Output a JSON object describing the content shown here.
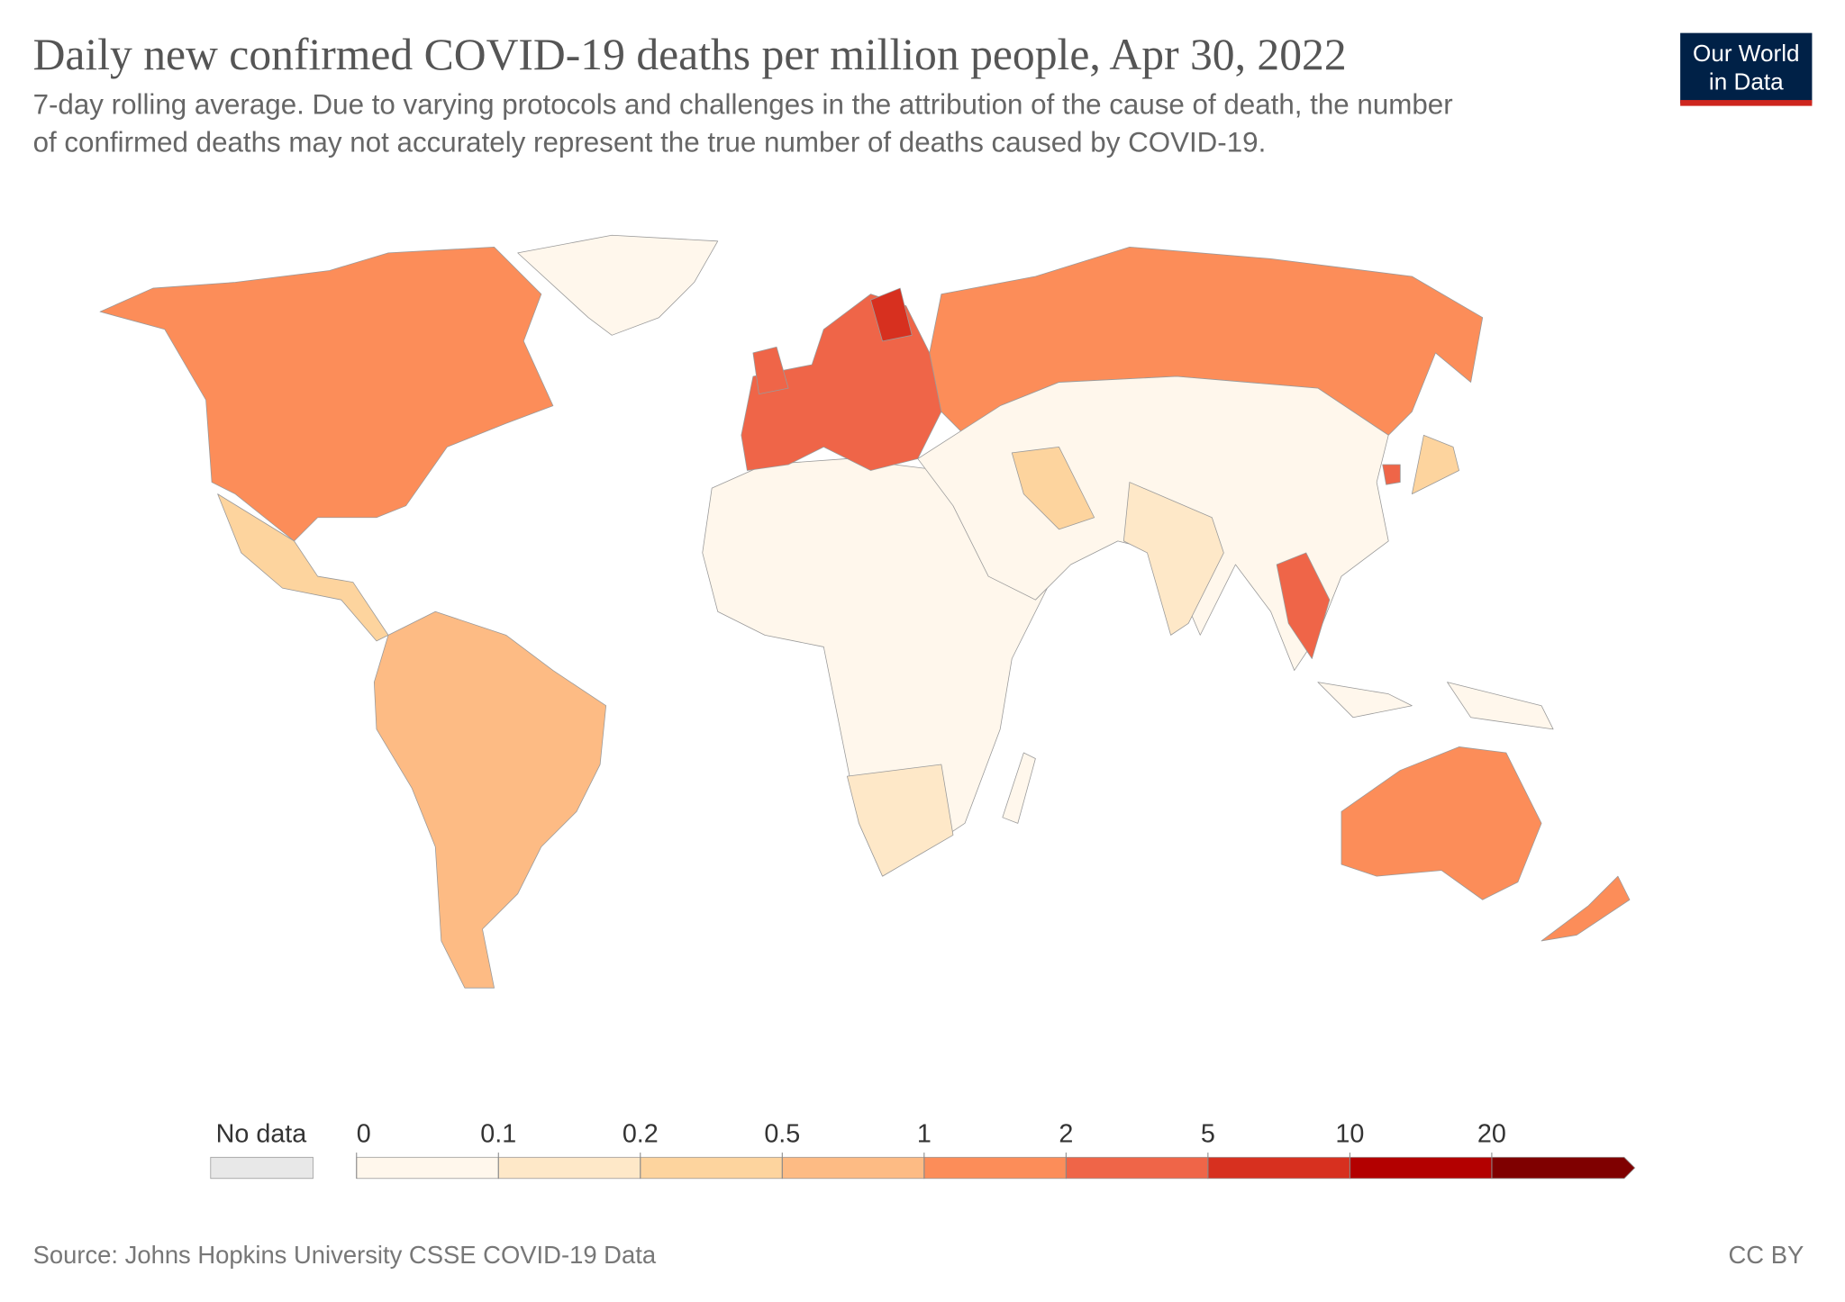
{
  "header": {
    "title": "Daily new confirmed COVID-19 deaths per million people, Apr 30, 2022",
    "subtitle": [
      "7-day rolling average. Due to varying protocols and challenges in the attribution of the cause of death, the number",
      "of confirmed deaths may not accurately represent the true number of deaths caused by COVID-19."
    ],
    "logo": [
      "Our World",
      "in Data"
    ]
  },
  "legend": {
    "no_data_label": "No data",
    "no_data_color": "#e8e8e8",
    "bins": [
      0,
      0.1,
      0.2,
      0.5,
      1,
      2,
      5,
      10,
      20
    ],
    "colors": [
      "#fff7ec",
      "#fee8c8",
      "#fdd49e",
      "#fdbb84",
      "#fc8d59",
      "#ef6548",
      "#d7301f",
      "#b30000",
      "#7f0000"
    ]
  },
  "footer": {
    "source": "Source: Johns Hopkins University CSSE COVID-19 Data",
    "license": "CC BY"
  }
}
